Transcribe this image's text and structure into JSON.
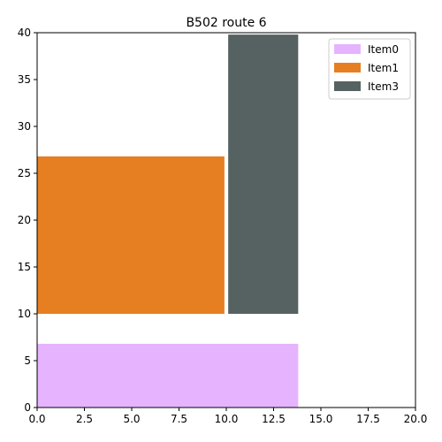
{
  "chart_data": {
    "type": "bar",
    "title": "B502 route 6",
    "xlabel": "",
    "ylabel": "",
    "xlim": [
      0,
      20
    ],
    "ylim": [
      0,
      40
    ],
    "xticks": [
      0.0,
      2.5,
      5.0,
      7.5,
      10.0,
      12.5,
      15.0,
      17.5,
      20.0
    ],
    "xtick_labels": [
      "0.0",
      "2.5",
      "5.0",
      "7.5",
      "10.0",
      "12.5",
      "15.0",
      "17.5",
      "20.0"
    ],
    "yticks": [
      0,
      5,
      10,
      15,
      20,
      25,
      30,
      35,
      40
    ],
    "ytick_labels": [
      "0",
      "5",
      "10",
      "15",
      "20",
      "25",
      "30",
      "35",
      "40"
    ],
    "grid": false,
    "legend_position": "top-right",
    "series": [
      {
        "name": "Item0",
        "color": "#e6b3ff",
        "rects": [
          {
            "x0": 0,
            "x1": 13.8,
            "y0": 0,
            "y1": 6.8
          }
        ]
      },
      {
        "name": "Item1",
        "color": "#e67e22",
        "rects": [
          {
            "x0": 0,
            "x1": 9.9,
            "y0": 10,
            "y1": 26.8
          }
        ]
      },
      {
        "name": "Item3",
        "color": "#566161",
        "rects": [
          {
            "x0": 10.1,
            "x1": 13.8,
            "y0": 10,
            "y1": 39.8
          }
        ]
      }
    ]
  }
}
